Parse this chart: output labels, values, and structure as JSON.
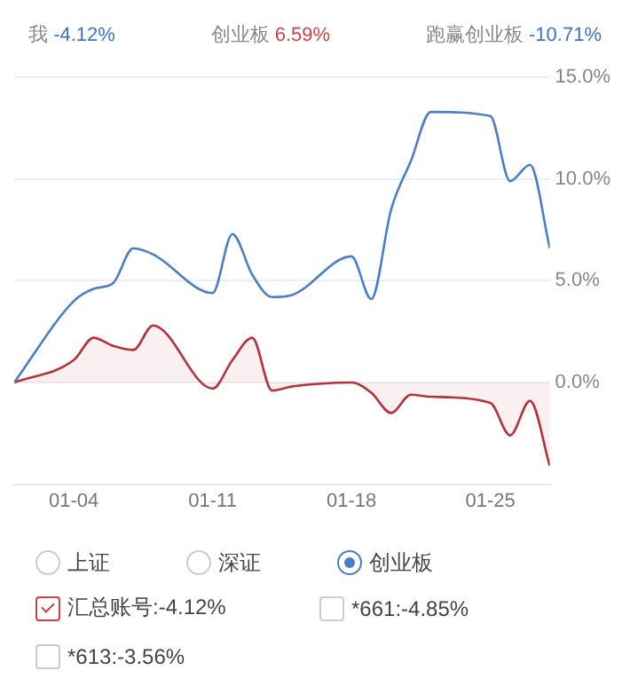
{
  "chart_data": {
    "type": "line",
    "annotations": [
      "我 -4.12%",
      "创业板 6.59%",
      "跑赢创业板 -10.71%",
      "上证",
      "深证",
      "创业板",
      "汇总账号:-4.12%",
      "*661:-4.85%",
      "*613:-3.56%"
    ],
    "x": [
      "--01-01",
      "--01-04",
      "--01-05",
      "--01-06",
      "--01-07",
      "--01-08",
      "--01-11",
      "--01-12",
      "--01-13",
      "--01-14",
      "--01-15",
      "--01-18",
      "--01-19",
      "--01-20",
      "--01-21",
      "--01-22",
      "--01-25",
      "--01-26",
      "--01-27",
      "--01-28"
    ],
    "series": [
      {
        "color": "#4a7fc8",
        "values": [
          0,
          4.0,
          4.6,
          4.9,
          6.6,
          6.3,
          4.4,
          7.3,
          5.3,
          4.2,
          4.3,
          6.2,
          4.1,
          8.5,
          10.9,
          13.3,
          13.1,
          9.9,
          10.7,
          6.6
        ]
      },
      {
        "type": "area",
        "color": "#b8303a",
        "values": [
          0,
          1.1,
          2.2,
          1.8,
          1.6,
          2.8,
          -0.3,
          1.1,
          2.2,
          -0.4,
          -0.2,
          0,
          -0.5,
          -1.5,
          -0.6,
          -0.7,
          -1.0,
          -2.6,
          -0.9,
          -4.1
        ]
      }
    ],
    "xlim": [
      "--01-01",
      "--01-28"
    ],
    "xticks": [
      {
        "value": "--01-04",
        "label": "01-04"
      },
      {
        "value": "--01-11",
        "label": "01-11"
      },
      {
        "value": "--01-18",
        "label": "01-18"
      },
      {
        "value": "--01-25",
        "label": "01-25"
      }
    ],
    "ylim": [
      -5,
      15
    ],
    "yticks": [
      {
        "value": 0,
        "label": "0.0%"
      },
      {
        "value": 5,
        "label": "5.0%"
      },
      {
        "value": 10,
        "label": "10.0%"
      },
      {
        "value": 15,
        "label": "15.0%"
      }
    ],
    "grid": "y",
    "legend": false,
    "marker": "none",
    "line_style": "solid"
  }
}
